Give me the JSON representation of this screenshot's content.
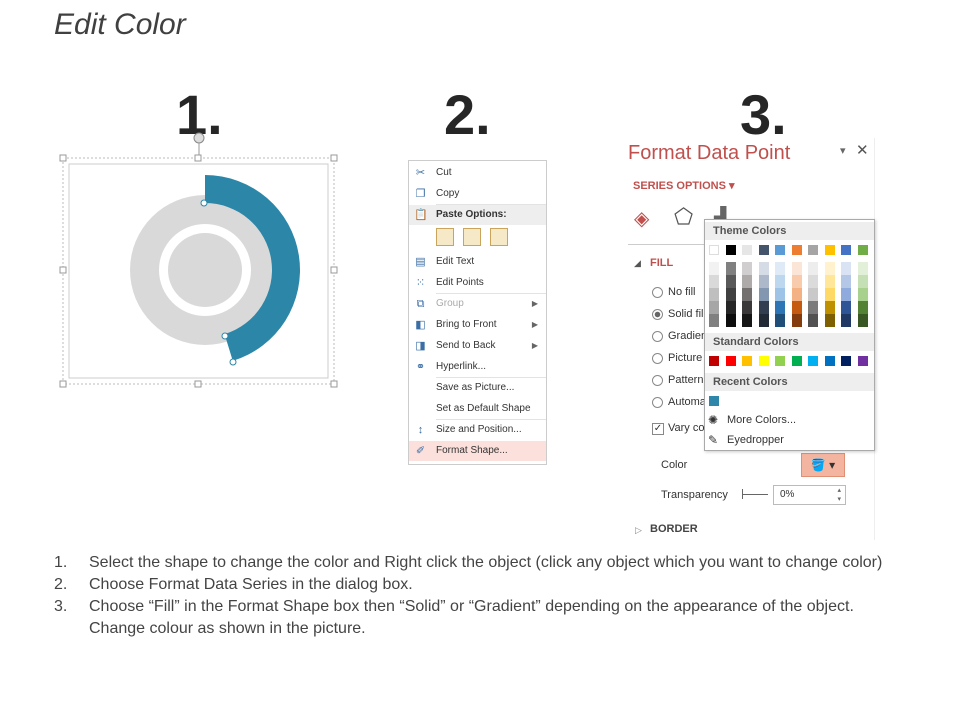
{
  "title": "Edit Color",
  "steps": [
    "1.",
    "2.",
    "3."
  ],
  "context_menu": {
    "items": [
      {
        "label": "Cut",
        "icon": "scissors-icon"
      },
      {
        "label": "Copy",
        "icon": "copy-icon"
      },
      {
        "label": "Paste Options:",
        "icon": "paste-icon",
        "header": true
      },
      {
        "label": "Edit Text",
        "icon": "edit-text-icon"
      },
      {
        "label": "Edit Points",
        "icon": "edit-points-icon"
      },
      {
        "label": "Group",
        "icon": "group-icon",
        "disabled": true,
        "submenu": true
      },
      {
        "label": "Bring to Front",
        "icon": "bring-front-icon",
        "submenu": true
      },
      {
        "label": "Send to Back",
        "icon": "send-back-icon",
        "submenu": true
      },
      {
        "label": "Hyperlink...",
        "icon": "hyperlink-icon"
      },
      {
        "label": "Save as Picture..."
      },
      {
        "label": "Set as Default Shape"
      },
      {
        "label": "Size and Position...",
        "icon": "size-position-icon"
      },
      {
        "label": "Format Shape...",
        "icon": "format-shape-icon",
        "highlighted": true
      }
    ]
  },
  "format_panel": {
    "title": "Format Data Point",
    "series_options": "SERIES OPTIONS",
    "fill_label": "FILL",
    "fill_options": [
      "No fill",
      "Solid fill",
      "Gradient fill",
      "Picture or texture fill",
      "Pattern fill",
      "Automatic"
    ],
    "vary_colors": "Vary colors by slice",
    "color_label": "Color",
    "transparency_label": "Transparency",
    "transparency_value": "0%",
    "border_label": "BORDER",
    "accent": "#c0504d"
  },
  "palette": {
    "theme_header": "Theme Colors",
    "theme_base": [
      "#ffffff",
      "#000000",
      "#e7e6e6",
      "#44546a",
      "#5b9bd5",
      "#ed7d31",
      "#a5a5a5",
      "#ffc000",
      "#4472c4",
      "#70ad47"
    ],
    "theme_shades": [
      [
        "#f2f2f2",
        "#d9d9d9",
        "#bfbfbf",
        "#a6a6a6",
        "#808080"
      ],
      [
        "#808080",
        "#595959",
        "#404040",
        "#262626",
        "#0d0d0d"
      ],
      [
        "#d0cece",
        "#aeaaaa",
        "#757070",
        "#3a3838",
        "#171616"
      ],
      [
        "#d6dce5",
        "#adb9ca",
        "#8497b0",
        "#333f50",
        "#222a35"
      ],
      [
        "#deebf7",
        "#bdd7ee",
        "#9dc3e6",
        "#2e75b6",
        "#1f4e79"
      ],
      [
        "#fbe5d6",
        "#f8cbad",
        "#f4b183",
        "#c55a11",
        "#843c0c"
      ],
      [
        "#ededed",
        "#dbdbdb",
        "#c9c9c9",
        "#7b7b7b",
        "#525252"
      ],
      [
        "#fff2cc",
        "#ffe699",
        "#ffd966",
        "#bf9000",
        "#7f6000"
      ],
      [
        "#dae3f3",
        "#b4c7e7",
        "#8faadc",
        "#2f5597",
        "#203864"
      ],
      [
        "#e2f0d9",
        "#c5e0b4",
        "#a9d18e",
        "#548235",
        "#385723"
      ]
    ],
    "standard_header": "Standard Colors",
    "standard": [
      "#c00000",
      "#ff0000",
      "#ffc000",
      "#ffff00",
      "#92d050",
      "#00b050",
      "#00b0f0",
      "#0070c0",
      "#002060",
      "#7030a0"
    ],
    "recent_header": "Recent Colors",
    "recent": [
      "#2e86ab"
    ],
    "more_colors": "More Colors...",
    "eyedropper": "Eyedropper"
  },
  "donut": {
    "accent": "#2b86a8",
    "gray": "#d9d9d9"
  },
  "instructions": [
    {
      "num": "1.",
      "text": "Select the shape to change the color and Right click the object (click any object which you want to change color)"
    },
    {
      "num": "2.",
      "text": "Choose Format Data Series in the dialog box."
    },
    {
      "num": "3.",
      "text": "Choose “Fill” in the Format Shape box then “Solid” or “Gradient” depending on the appearance of the object. Change colour as shown in the picture."
    }
  ]
}
